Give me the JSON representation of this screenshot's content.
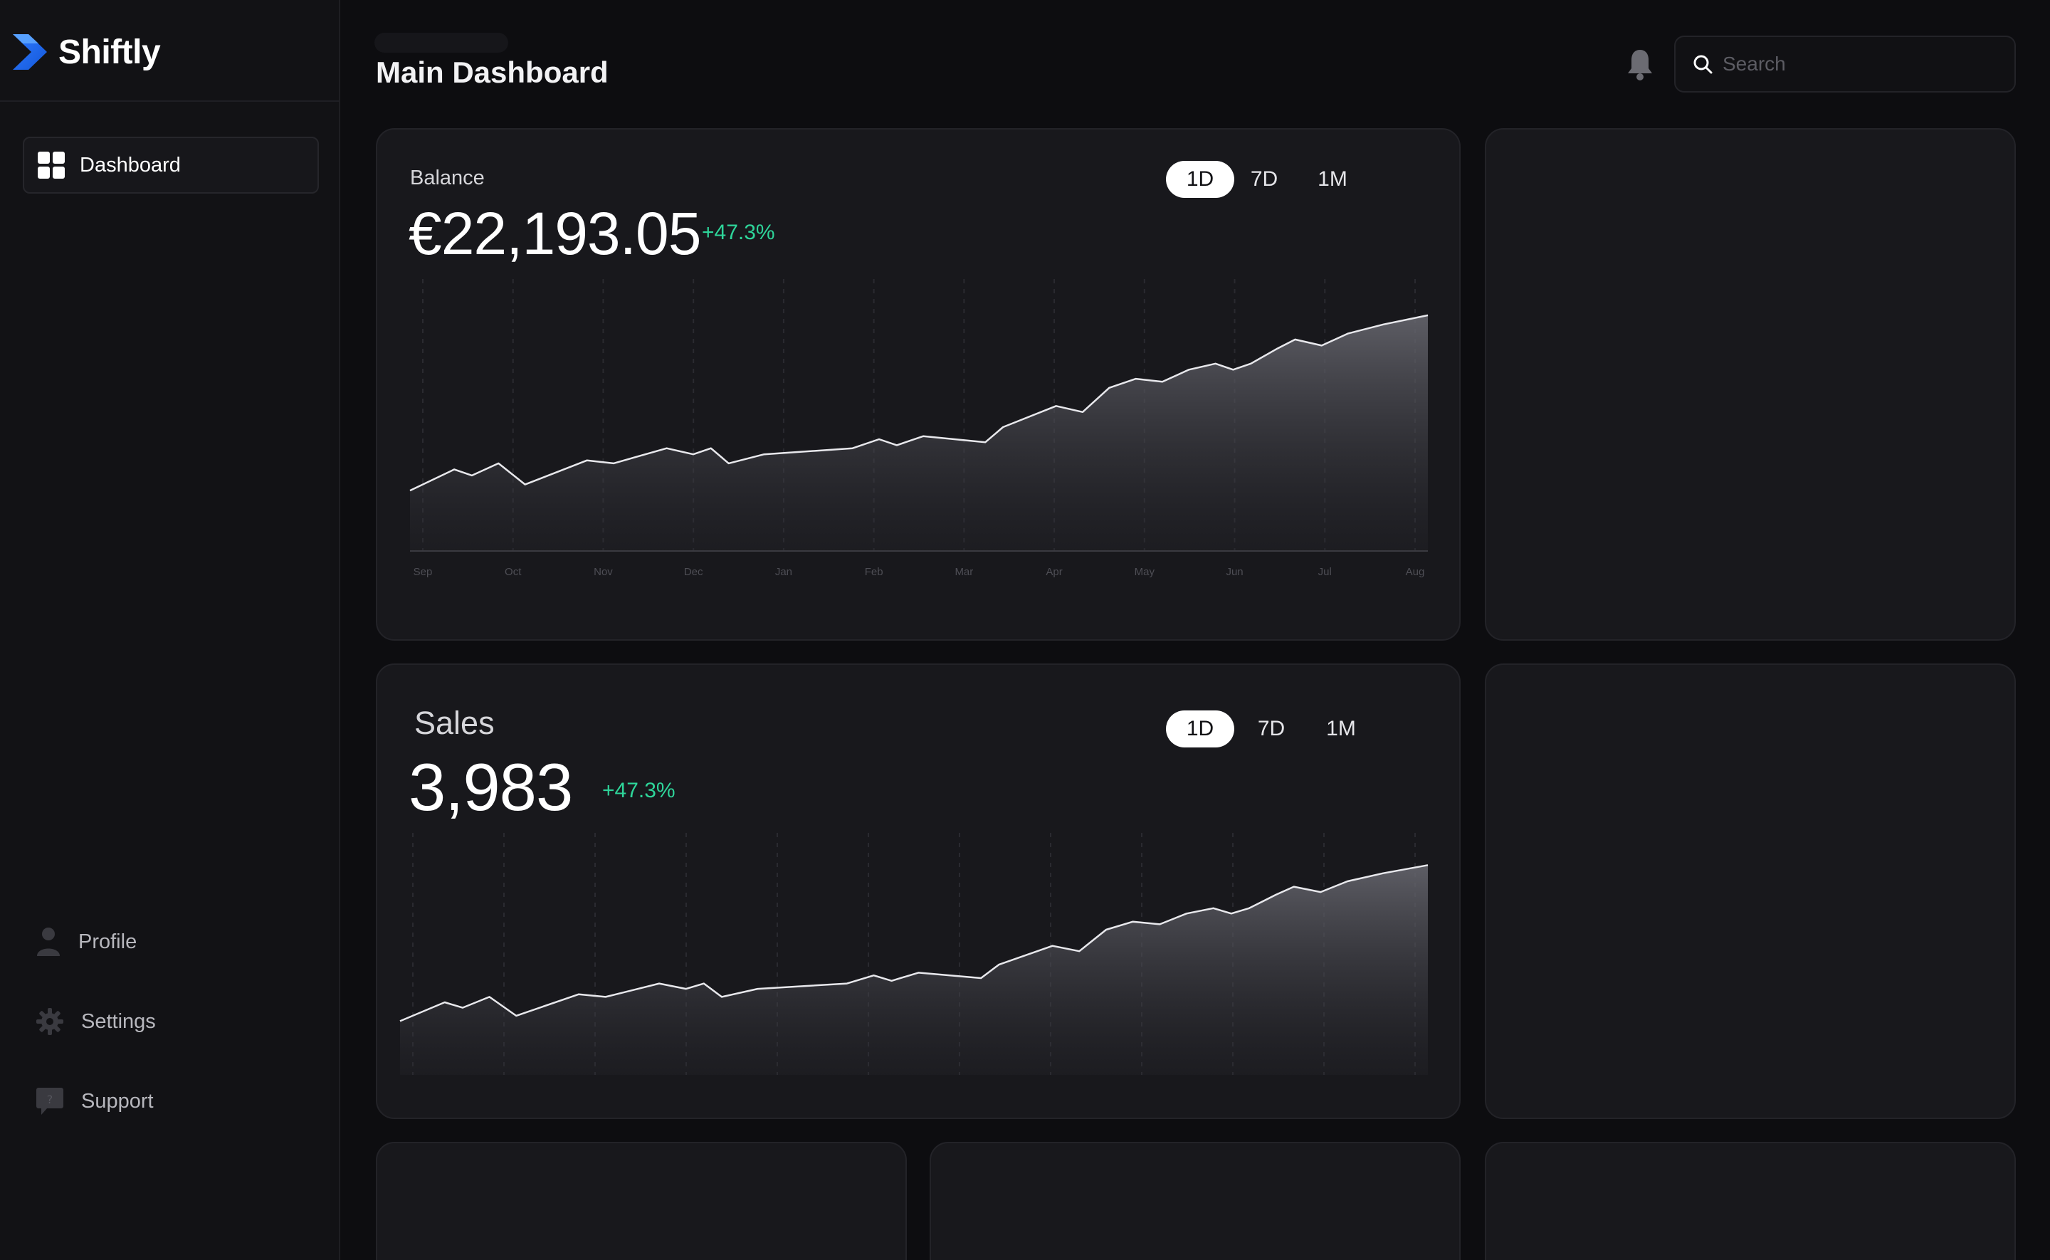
{
  "app": {
    "name": "Shiftly"
  },
  "header": {
    "title": "Main Dashboard",
    "search_placeholder": "Search"
  },
  "sidebar": {
    "items": [
      {
        "label": "Dashboard",
        "icon": "dashboard-grid-icon",
        "active": true
      },
      {
        "label": "Profile",
        "icon": "user-icon"
      },
      {
        "label": "Settings",
        "icon": "gear-icon"
      },
      {
        "label": "Support",
        "icon": "chat-help-icon"
      }
    ]
  },
  "ranges": [
    "1D",
    "7D",
    "1M"
  ],
  "colors": {
    "accent_positive": "#2ed59a",
    "background": "#0d0d10",
    "card": "#18181c"
  },
  "balance": {
    "label": "Balance",
    "value": "€22,193.05",
    "change": "+47.3%",
    "selected_range": "1D"
  },
  "sales": {
    "label": "Sales",
    "value": "3,983",
    "change": "+47.3%",
    "selected_range": "1D"
  },
  "chart_data": [
    {
      "type": "area",
      "categories": [
        "Sep",
        "Oct",
        "Nov",
        "Dec",
        "Jan",
        "Feb",
        "Mar",
        "Apr",
        "May",
        "Jun",
        "Jul",
        "Aug"
      ],
      "x": [
        0,
        0.5,
        0.7,
        1.0,
        1.3,
        2.0,
        2.3,
        2.9,
        3.2,
        3.4,
        3.6,
        4.0,
        5.0,
        5.3,
        5.5,
        5.8,
        6.5,
        6.7,
        7.3,
        7.6,
        7.9,
        8.2,
        8.5,
        8.8,
        9.1,
        9.3,
        9.5,
        9.8,
        10.0,
        10.3,
        10.6,
        11.0,
        11.5
      ],
      "series": [
        {
          "values": [
            20,
            27,
            25,
            29,
            22,
            30,
            29,
            34,
            32,
            34,
            29,
            32,
            34,
            37,
            35,
            38,
            36,
            41,
            48,
            46,
            54,
            57,
            56,
            60,
            62,
            60,
            62,
            67,
            70,
            68,
            72,
            75,
            78
          ]
        }
      ],
      "ylim": [
        0,
        90
      ],
      "grid": true
    },
    {
      "type": "area",
      "x": [
        0,
        0.5,
        0.7,
        1.0,
        1.3,
        2.0,
        2.3,
        2.9,
        3.2,
        3.4,
        3.6,
        4.0,
        5.0,
        5.3,
        5.5,
        5.8,
        6.5,
        6.7,
        7.3,
        7.6,
        7.9,
        8.2,
        8.5,
        8.8,
        9.1,
        9.3,
        9.5,
        9.8,
        10.0,
        10.3,
        10.6,
        11.0,
        11.5
      ],
      "series": [
        {
          "values": [
            20,
            27,
            25,
            29,
            22,
            30,
            29,
            34,
            32,
            34,
            29,
            32,
            34,
            37,
            35,
            38,
            36,
            41,
            48,
            46,
            54,
            57,
            56,
            60,
            62,
            60,
            62,
            67,
            70,
            68,
            72,
            75,
            78
          ]
        }
      ],
      "ylim": [
        0,
        90
      ],
      "grid": true
    }
  ]
}
